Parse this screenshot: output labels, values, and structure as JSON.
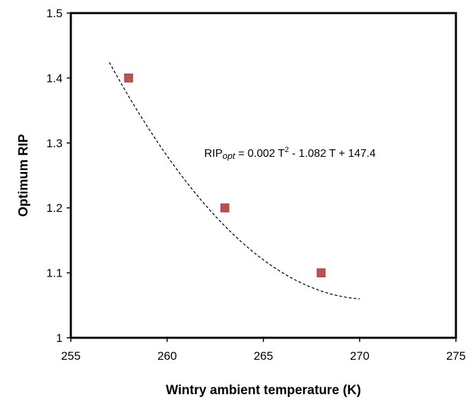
{
  "chart_data": {
    "type": "scatter",
    "xlabel": "Wintry ambient temperature (K)",
    "ylabel": "Optimum RIP",
    "xlim": [
      255,
      275
    ],
    "ylim": [
      1.0,
      1.5
    ],
    "x_ticks": [
      "255",
      "260",
      "265",
      "270",
      "275"
    ],
    "y_ticks": [
      "1",
      "1.1",
      "1.2",
      "1.3",
      "1.4",
      "1.5"
    ],
    "grid": false,
    "points": [
      {
        "x": 258,
        "y": 1.4
      },
      {
        "x": 263,
        "y": 1.2
      },
      {
        "x": 268,
        "y": 1.1
      }
    ],
    "trendline": {
      "style": "dashed",
      "x_range": [
        257,
        270
      ],
      "coefficients": {
        "a": 0.002,
        "b": -1.082,
        "c": 147.4
      }
    },
    "annotation": {
      "prefix": "RIP",
      "subscript": "opt",
      "middle": " = 0.002 T",
      "superscript": "2",
      "suffix": " - 1.082 T + 147.4"
    },
    "colors": {
      "marker": "#c0504d",
      "marker_edge": "#8b3a38",
      "axis": "#000000"
    }
  }
}
